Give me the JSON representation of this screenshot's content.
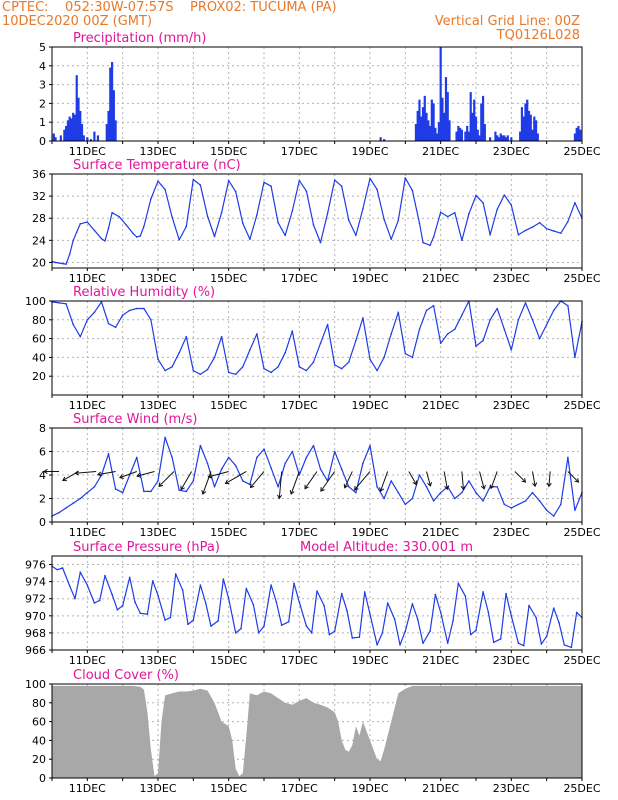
{
  "header": {
    "line1_left": "CPTEC:    052:30W-07:57S    PROX02: TUCUMA (PA)",
    "line2_left": "10DEC2020 00Z (GMT)",
    "line2_right": "Vertical Grid Line: 00Z",
    "line3_right": "TQ0126L028"
  },
  "colors": {
    "header": "#e8782a",
    "panel_title": "#e0169a",
    "series": "#1f3ce6",
    "cloud": "#a8a8a8",
    "grid": "#b4b4b4",
    "axis": "#000000"
  },
  "x_axis": {
    "start_day": 10,
    "end_day": 25,
    "tick_labels": [
      "11DEC",
      "13DEC",
      "15DEC",
      "17DEC",
      "19DEC",
      "21DEC",
      "23DEC",
      "25DEC"
    ]
  },
  "chart_data": [
    {
      "id": "precip",
      "type": "bar",
      "title": "Precipitation (mm/h)",
      "ylim": [
        0,
        5
      ],
      "yticks": [
        0,
        1,
        2,
        3,
        4,
        5
      ],
      "x": [
        10.05,
        10.1,
        10.25,
        10.35,
        10.4,
        10.45,
        10.5,
        10.55,
        10.6,
        10.65,
        10.7,
        10.75,
        10.8,
        10.85,
        10.9,
        11.0,
        11.1,
        11.2,
        11.3,
        11.55,
        11.6,
        11.65,
        11.7,
        11.75,
        11.8,
        19.3,
        19.4,
        20.3,
        20.35,
        20.4,
        20.45,
        20.5,
        20.55,
        20.6,
        20.65,
        20.7,
        20.75,
        20.8,
        20.85,
        20.9,
        20.95,
        21.0,
        21.05,
        21.1,
        21.15,
        21.2,
        21.25,
        21.45,
        21.5,
        21.55,
        21.6,
        21.7,
        21.75,
        21.8,
        21.85,
        21.9,
        21.95,
        22.0,
        22.05,
        22.1,
        22.15,
        22.2,
        22.25,
        22.4,
        22.55,
        22.6,
        22.65,
        22.7,
        22.75,
        22.8,
        22.85,
        22.9,
        23.0,
        23.25,
        23.3,
        23.35,
        23.4,
        23.45,
        23.5,
        23.55,
        23.6,
        23.65,
        23.7,
        23.75,
        24.8,
        24.85,
        24.9,
        24.95
      ],
      "values": [
        0.4,
        0.2,
        0.3,
        0.6,
        0.8,
        1.1,
        1.3,
        1.2,
        1.5,
        1.4,
        3.5,
        2.3,
        1.6,
        0.9,
        0.3,
        0.2,
        0.1,
        0.5,
        0.3,
        0.9,
        1.6,
        3.9,
        4.2,
        2.7,
        1.1,
        0.2,
        0.1,
        0.9,
        1.6,
        2.2,
        1.3,
        1.8,
        2.4,
        1.5,
        1.1,
        0.8,
        2.2,
        2.0,
        0.7,
        0.4,
        1.0,
        5.0,
        2.3,
        1.5,
        3.4,
        2.6,
        1.1,
        0.5,
        0.8,
        0.7,
        0.6,
        0.5,
        0.8,
        0.5,
        2.6,
        1.5,
        2.2,
        1.3,
        0.6,
        0.3,
        2.0,
        2.4,
        0.9,
        0.2,
        0.5,
        0.3,
        0.2,
        0.4,
        0.3,
        0.3,
        0.2,
        0.3,
        0.2,
        0.5,
        1.8,
        1.3,
        2.0,
        2.2,
        1.6,
        1.4,
        0.6,
        1.3,
        1.1,
        0.4,
        0.4,
        0.7,
        0.8,
        0.6
      ]
    },
    {
      "id": "temp",
      "type": "line",
      "title": "Surface Temperature (nC)",
      "ylim": [
        19,
        36
      ],
      "yticks": [
        20,
        24,
        28,
        32,
        36
      ],
      "x": [
        10.0,
        10.1,
        10.2,
        10.3,
        10.4,
        10.5,
        10.6,
        10.7,
        10.8,
        11.0,
        11.2,
        11.4,
        11.5,
        11.6,
        11.7,
        11.9,
        12.1,
        12.3,
        12.4,
        12.5,
        12.6,
        12.8,
        13.0,
        13.2,
        13.4,
        13.6,
        13.8,
        14.0,
        14.2,
        14.4,
        14.6,
        14.8,
        15.0,
        15.2,
        15.4,
        15.6,
        15.8,
        16.0,
        16.2,
        16.4,
        16.6,
        16.8,
        17.0,
        17.2,
        17.4,
        17.6,
        17.8,
        18.0,
        18.2,
        18.4,
        18.6,
        18.8,
        19.0,
        19.2,
        19.4,
        19.6,
        19.8,
        20.0,
        20.2,
        20.4,
        20.5,
        20.7,
        20.8,
        21.0,
        21.2,
        21.4,
        21.6,
        21.8,
        22.0,
        22.2,
        22.4,
        22.6,
        22.8,
        23.0,
        23.2,
        23.4,
        23.6,
        23.8,
        24.0,
        24.2,
        24.4,
        24.6,
        24.8,
        25.0
      ],
      "values": [
        20.2,
        20.0,
        19.9,
        19.8,
        19.7,
        21.5,
        24.0,
        25.5,
        27.0,
        27.3,
        25.8,
        24.3,
        23.9,
        26.2,
        29.0,
        28.3,
        26.8,
        25.2,
        24.6,
        24.8,
        26.5,
        31.5,
        34.7,
        33.2,
        28.2,
        24.1,
        26.5,
        35.0,
        34.0,
        28.4,
        24.7,
        29.0,
        34.8,
        32.8,
        27.1,
        24.2,
        28.6,
        34.5,
        33.8,
        27.2,
        24.9,
        29.3,
        34.8,
        32.9,
        26.8,
        23.6,
        28.9,
        34.9,
        33.8,
        27.6,
        24.9,
        29.7,
        35.2,
        33.2,
        27.8,
        24.2,
        27.6,
        35.3,
        33.0,
        27.1,
        23.6,
        23.1,
        24.6,
        29.1,
        28.3,
        29.0,
        24.0,
        28.8,
        32.1,
        30.8,
        25.0,
        29.6,
        32.2,
        30.4,
        25.0,
        25.8,
        26.4,
        27.2,
        26.1,
        25.7,
        25.3,
        27.4,
        30.8,
        28.0
      ]
    },
    {
      "id": "rh",
      "type": "line",
      "title": "Relative Humidity (%)",
      "ylim": [
        0,
        100
      ],
      "yticks": [
        20,
        40,
        60,
        80,
        100
      ],
      "x": [
        10.0,
        10.2,
        10.4,
        10.6,
        10.8,
        11.0,
        11.2,
        11.4,
        11.6,
        11.8,
        12.0,
        12.2,
        12.4,
        12.6,
        12.8,
        13.0,
        13.2,
        13.4,
        13.6,
        13.8,
        14.0,
        14.2,
        14.4,
        14.6,
        14.8,
        15.0,
        15.2,
        15.4,
        15.6,
        15.8,
        16.0,
        16.2,
        16.4,
        16.6,
        16.8,
        17.0,
        17.2,
        17.4,
        17.6,
        17.8,
        18.0,
        18.2,
        18.4,
        18.6,
        18.8,
        19.0,
        19.2,
        19.4,
        19.6,
        19.8,
        20.0,
        20.2,
        20.4,
        20.6,
        20.8,
        21.0,
        21.2,
        21.4,
        21.6,
        21.8,
        22.0,
        22.2,
        22.4,
        22.6,
        22.8,
        23.0,
        23.2,
        23.4,
        23.6,
        23.8,
        24.0,
        24.2,
        24.4,
        24.6,
        24.8,
        25.0
      ],
      "values": [
        99,
        98,
        97,
        75,
        62,
        80,
        88,
        99,
        76,
        72,
        85,
        90,
        92,
        92,
        80,
        38,
        26,
        30,
        45,
        62,
        26,
        22,
        27,
        40,
        62,
        24,
        22,
        30,
        48,
        65,
        28,
        24,
        30,
        45,
        68,
        30,
        26,
        35,
        55,
        75,
        32,
        28,
        35,
        58,
        82,
        38,
        26,
        40,
        65,
        88,
        44,
        40,
        70,
        90,
        95,
        55,
        65,
        70,
        85,
        100,
        52,
        58,
        80,
        92,
        70,
        48,
        80,
        98,
        80,
        60,
        75,
        90,
        100,
        95,
        40,
        78
      ]
    },
    {
      "id": "wind",
      "type": "line",
      "title": "Surface Wind (m/s)",
      "ylim": [
        0,
        8
      ],
      "yticks": [
        0,
        2,
        4,
        6,
        8
      ],
      "x": [
        10.0,
        10.2,
        10.4,
        10.6,
        10.8,
        11.0,
        11.2,
        11.4,
        11.6,
        11.8,
        12.0,
        12.2,
        12.4,
        12.6,
        12.8,
        13.0,
        13.2,
        13.4,
        13.6,
        13.8,
        14.0,
        14.2,
        14.4,
        14.6,
        14.8,
        15.0,
        15.2,
        15.4,
        15.6,
        15.8,
        16.0,
        16.2,
        16.4,
        16.6,
        16.8,
        17.0,
        17.2,
        17.4,
        17.6,
        17.8,
        18.0,
        18.2,
        18.4,
        18.6,
        18.8,
        19.0,
        19.2,
        19.4,
        19.6,
        19.8,
        20.0,
        20.2,
        20.4,
        20.6,
        20.8,
        21.0,
        21.2,
        21.4,
        21.6,
        21.8,
        22.0,
        22.2,
        22.4,
        22.6,
        22.8,
        23.0,
        23.2,
        23.4,
        23.6,
        23.8,
        24.0,
        24.2,
        24.4,
        24.6,
        24.8,
        25.0
      ],
      "values": [
        0.5,
        0.8,
        1.2,
        1.6,
        2.0,
        2.5,
        3.0,
        4.0,
        5.8,
        2.8,
        2.5,
        4.0,
        5.5,
        2.6,
        2.6,
        3.5,
        7.2,
        5.5,
        2.7,
        2.6,
        3.5,
        6.5,
        5.0,
        3.0,
        4.5,
        5.5,
        4.8,
        3.5,
        3.2,
        5.5,
        6.2,
        4.6,
        3.0,
        5.0,
        6.0,
        4.0,
        5.5,
        6.5,
        4.5,
        3.5,
        6.0,
        4.5,
        3.0,
        2.5,
        5.0,
        6.5,
        3.0,
        2.0,
        3.5,
        2.5,
        1.5,
        2.0,
        4.0,
        3.0,
        1.8,
        2.5,
        3.0,
        2.0,
        2.5,
        3.5,
        2.5,
        1.8,
        3.0,
        3.0,
        1.5,
        1.2,
        1.5,
        1.8,
        2.5,
        1.8,
        1.0,
        0.5,
        1.5,
        5.5,
        1.0,
        2.5
      ],
      "barbs": {
        "x": [
          10.2,
          10.75,
          11.25,
          11.8,
          12.4,
          12.9,
          13.45,
          13.95,
          14.5,
          15.0,
          15.5,
          16.0,
          16.5,
          17.0,
          17.5,
          18.0,
          18.5,
          19.0,
          19.5,
          20.1,
          20.6,
          21.1,
          21.6,
          22.1,
          22.6,
          23.1,
          23.6,
          24.1,
          24.6
        ],
        "angles_deg": [
          180,
          150,
          175,
          170,
          160,
          165,
          135,
          120,
          110,
          165,
          150,
          130,
          95,
          110,
          125,
          125,
          115,
          130,
          110,
          60,
          75,
          80,
          85,
          75,
          110,
          45,
          80,
          95,
          45
        ],
        "speeds": [
          2.5,
          3.0,
          3.5,
          3.0,
          3.0,
          3.0,
          3.5,
          3.5,
          4.0,
          3.5,
          4.0,
          3.5,
          4.5,
          4.0,
          3.5,
          4.0,
          3.0,
          4.0,
          3.5,
          2.5,
          2.5,
          3.0,
          3.0,
          3.0,
          3.0,
          2.5,
          2.5,
          2.5,
          2.5
        ]
      }
    },
    {
      "id": "pressure",
      "type": "line",
      "title": "Surface Pressure (hPa)",
      "subtitle": "Model Altitude: 330.001  m",
      "ylim": [
        966,
        977
      ],
      "yticks": [
        966,
        968,
        970,
        972,
        974,
        976
      ],
      "x": [
        10.0,
        10.15,
        10.3,
        10.5,
        10.65,
        10.8,
        11.0,
        11.2,
        11.35,
        11.5,
        11.7,
        11.85,
        12.0,
        12.2,
        12.35,
        12.5,
        12.7,
        12.85,
        13.0,
        13.2,
        13.35,
        13.5,
        13.7,
        13.85,
        14.0,
        14.2,
        14.35,
        14.5,
        14.7,
        14.85,
        15.0,
        15.2,
        15.35,
        15.5,
        15.7,
        15.85,
        16.0,
        16.2,
        16.35,
        16.5,
        16.7,
        16.85,
        17.0,
        17.2,
        17.35,
        17.5,
        17.7,
        17.85,
        18.0,
        18.2,
        18.35,
        18.5,
        18.7,
        18.85,
        19.0,
        19.2,
        19.35,
        19.5,
        19.7,
        19.85,
        20.0,
        20.2,
        20.35,
        20.5,
        20.7,
        20.85,
        21.0,
        21.2,
        21.35,
        21.5,
        21.7,
        21.85,
        22.0,
        22.2,
        22.35,
        22.5,
        22.7,
        22.85,
        23.0,
        23.2,
        23.35,
        23.5,
        23.7,
        23.85,
        24.0,
        24.2,
        24.35,
        24.5,
        24.7,
        24.85,
        25.0
      ],
      "values": [
        975.8,
        975.4,
        975.6,
        973.5,
        972.0,
        975.1,
        973.6,
        971.5,
        971.8,
        974.7,
        972.5,
        970.7,
        971.2,
        974.5,
        971.6,
        970.3,
        970.2,
        974.1,
        972.4,
        969.5,
        969.8,
        974.9,
        973.0,
        969.0,
        969.5,
        973.6,
        971.5,
        968.8,
        969.4,
        974.3,
        972.0,
        968.0,
        968.5,
        973.2,
        971.3,
        968.0,
        968.8,
        973.6,
        971.6,
        968.9,
        969.3,
        973.8,
        971.6,
        968.8,
        968.0,
        972.9,
        971.2,
        967.8,
        968.2,
        972.6,
        970.6,
        967.4,
        967.5,
        972.8,
        970.2,
        966.6,
        968.0,
        971.5,
        969.6,
        966.6,
        968.2,
        971.4,
        969.6,
        966.8,
        968.2,
        972.5,
        970.4,
        966.8,
        969.4,
        973.8,
        972.3,
        967.8,
        968.3,
        972.8,
        970.4,
        966.9,
        967.3,
        972.6,
        970.0,
        966.8,
        966.5,
        971.2,
        969.8,
        966.7,
        967.6,
        970.9,
        969.2,
        966.6,
        966.3,
        970.4,
        969.8
      ]
    },
    {
      "id": "cloud",
      "type": "area",
      "title": "Cloud Cover (%)",
      "ylim": [
        0,
        100
      ],
      "yticks": [
        0,
        20,
        40,
        60,
        80,
        100
      ],
      "x": [
        10.0,
        10.3,
        10.6,
        10.9,
        11.2,
        11.5,
        11.8,
        12.1,
        12.3,
        12.5,
        12.6,
        12.7,
        12.8,
        12.9,
        13.0,
        13.1,
        13.2,
        13.4,
        13.6,
        13.8,
        14.0,
        14.2,
        14.4,
        14.6,
        14.8,
        15.0,
        15.1,
        15.2,
        15.3,
        15.4,
        15.5,
        15.6,
        15.8,
        16.0,
        16.2,
        16.4,
        16.6,
        16.8,
        17.0,
        17.2,
        17.4,
        17.6,
        17.8,
        18.0,
        18.1,
        18.2,
        18.3,
        18.4,
        18.5,
        18.6,
        18.7,
        18.8,
        19.0,
        19.2,
        19.3,
        19.4,
        19.6,
        19.8,
        20.0,
        20.2,
        20.4,
        20.6,
        20.8,
        21.0,
        21.3,
        21.6,
        22.0,
        22.4,
        22.8,
        23.2,
        23.6,
        24.0,
        24.4,
        24.8,
        25.0
      ],
      "values": [
        98,
        98,
        98,
        98,
        98,
        98,
        98,
        98,
        98,
        97,
        94,
        70,
        30,
        2,
        5,
        60,
        88,
        90,
        92,
        92,
        93,
        95,
        93,
        80,
        60,
        55,
        40,
        10,
        2,
        5,
        45,
        90,
        88,
        92,
        90,
        85,
        80,
        78,
        82,
        85,
        80,
        78,
        75,
        70,
        60,
        40,
        30,
        28,
        35,
        55,
        45,
        60,
        40,
        20,
        18,
        30,
        60,
        90,
        95,
        98,
        98,
        98,
        98,
        98,
        98,
        98,
        98,
        98,
        98,
        98,
        98,
        98,
        98,
        98,
        98
      ]
    }
  ]
}
